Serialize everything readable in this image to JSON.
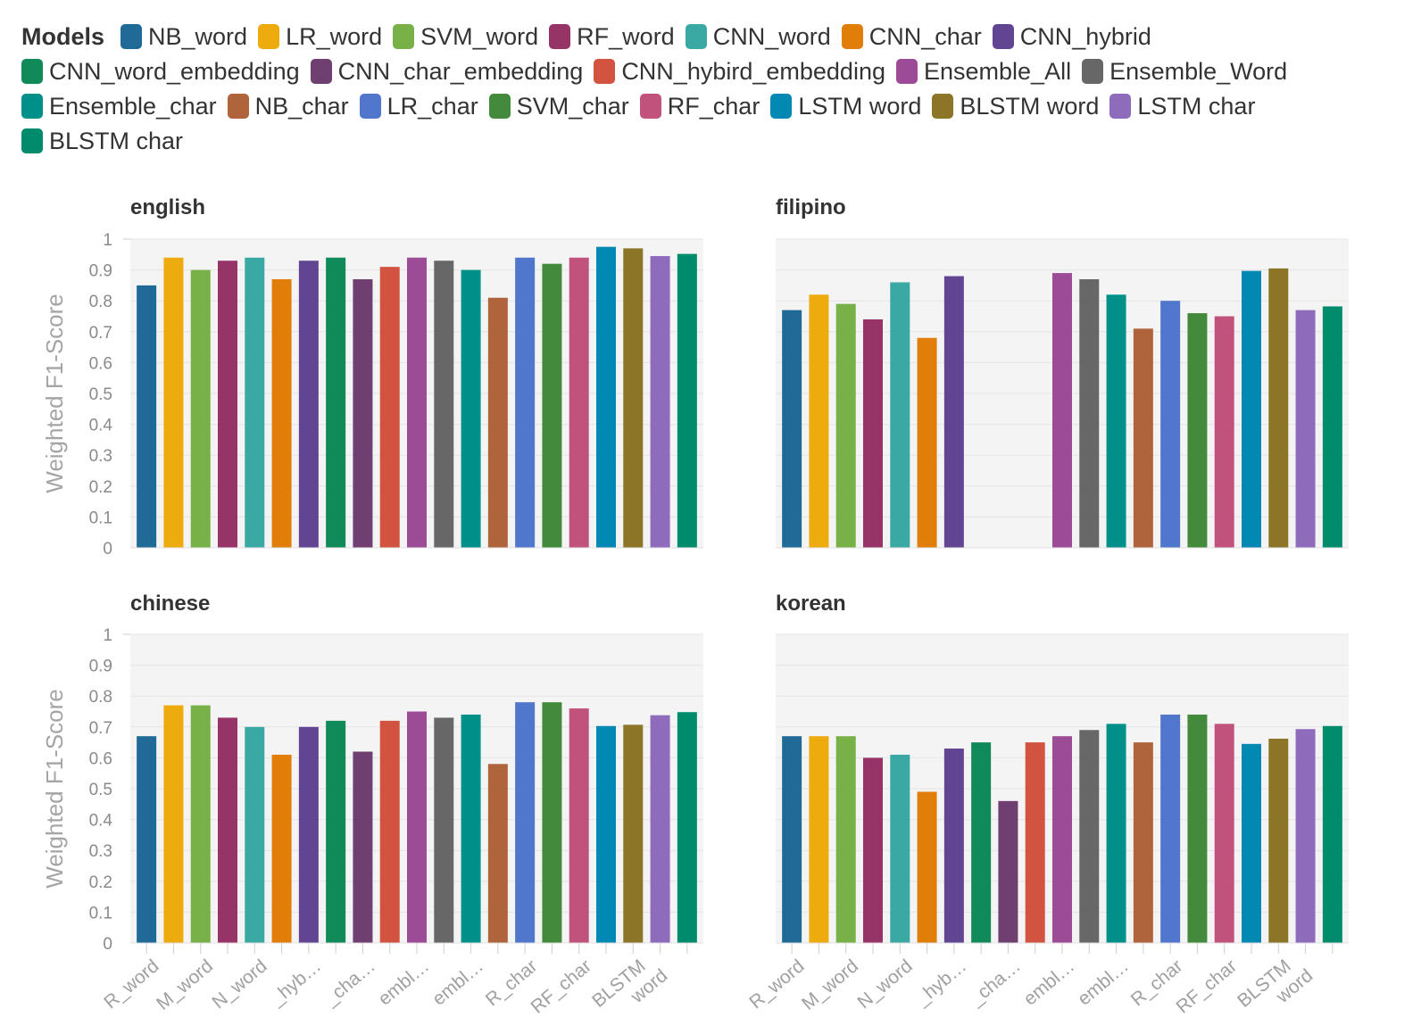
{
  "legend": {
    "title": "Models",
    "items": [
      {
        "name": "NB_word",
        "color": "#1f6a96"
      },
      {
        "name": "LR_word",
        "color": "#edab0d"
      },
      {
        "name": "SVM_word",
        "color": "#77b148"
      },
      {
        "name": "RF_word",
        "color": "#973467"
      },
      {
        "name": "CNN_word",
        "color": "#3aa9a4"
      },
      {
        "name": "CNN_char",
        "color": "#e07e09"
      },
      {
        "name": "CNN_hybrid",
        "color": "#614592"
      },
      {
        "name": "CNN_word_embedding",
        "color": "#108a58"
      },
      {
        "name": "CNN_char_embedding",
        "color": "#6e3f70"
      },
      {
        "name": "CNN_hybird_embedding",
        "color": "#d15340"
      },
      {
        "name": "Ensemble_All",
        "color": "#9c4b97"
      },
      {
        "name": "Ensemble_Word",
        "color": "#676767"
      },
      {
        "name": "Ensemble_char",
        "color": "#00908a"
      },
      {
        "name": "NB_char",
        "color": "#b0643b"
      },
      {
        "name": "LR_char",
        "color": "#5177cd"
      },
      {
        "name": "SVM_char",
        "color": "#448a3d"
      },
      {
        "name": "RF_char",
        "color": "#c0527c"
      },
      {
        "name": "LSTM word",
        "color": "#0289b3"
      },
      {
        "name": "BLSTM word",
        "color": "#8c7526"
      },
      {
        "name": "LSTM char",
        "color": "#8f6cbb"
      },
      {
        "name": "BLSTM char",
        "color": "#008c6c"
      }
    ]
  },
  "chart_data": [
    {
      "type": "bar",
      "title": "english",
      "ylabel": "Weighted F1-Score",
      "ylim": [
        0,
        1
      ],
      "yticks": [
        "0",
        "0.1",
        "0.2",
        "0.3",
        "0.4",
        "0.5",
        "0.6",
        "0.7",
        "0.8",
        "0.9",
        "1"
      ],
      "categories": [
        "NB_word",
        "LR_word",
        "SVM_word",
        "RF_word",
        "CNN_word",
        "CNN_char",
        "CNN_hybrid",
        "CNN_word_embedding",
        "CNN_char_embedding",
        "CNN_hybird_embedding",
        "Ensemble_All",
        "Ensemble_Word",
        "Ensemble_char",
        "NB_char",
        "LR_char",
        "SVM_char",
        "RF_char",
        "LSTM word",
        "BLSTM word",
        "LSTM char",
        "BLSTM char"
      ],
      "values": [
        0.85,
        0.94,
        0.9,
        0.93,
        0.94,
        0.87,
        0.93,
        0.94,
        0.87,
        0.91,
        0.94,
        0.93,
        0.9,
        0.81,
        0.94,
        0.92,
        0.94,
        0.975,
        0.97,
        0.945,
        0.952
      ]
    },
    {
      "type": "bar",
      "title": "filipino",
      "ylim": [
        0,
        1
      ],
      "categories": [
        "NB_word",
        "LR_word",
        "SVM_word",
        "RF_word",
        "CNN_word",
        "CNN_char",
        "CNN_hybrid",
        "CNN_word_embedding",
        "CNN_char_embedding",
        "CNN_hybird_embedding",
        "Ensemble_All",
        "Ensemble_Word",
        "Ensemble_char",
        "NB_char",
        "LR_char",
        "SVM_char",
        "RF_char",
        "LSTM word",
        "BLSTM word",
        "LSTM char",
        "BLSTM char"
      ],
      "values": [
        0.77,
        0.82,
        0.79,
        0.74,
        0.86,
        0.68,
        0.88,
        null,
        null,
        null,
        0.89,
        0.87,
        0.82,
        0.71,
        0.8,
        0.76,
        0.75,
        0.897,
        0.905,
        0.77,
        0.782
      ]
    },
    {
      "type": "bar",
      "title": "chinese",
      "ylabel": "Weighted F1-Score",
      "ylim": [
        0,
        1
      ],
      "yticks": [
        "0",
        "0.1",
        "0.2",
        "0.3",
        "0.4",
        "0.5",
        "0.6",
        "0.7",
        "0.8",
        "0.9",
        "1"
      ],
      "x_tick_labels": [
        "R_word",
        "M_word",
        "N_word",
        "_hyb…",
        "_cha…",
        "embl…",
        "embl…",
        "R_char",
        "RF_char",
        "BLSTM word"
      ],
      "categories": [
        "NB_word",
        "LR_word",
        "SVM_word",
        "RF_word",
        "CNN_word",
        "CNN_char",
        "CNN_hybrid",
        "CNN_word_embedding",
        "CNN_char_embedding",
        "CNN_hybird_embedding",
        "Ensemble_All",
        "Ensemble_Word",
        "Ensemble_char",
        "NB_char",
        "LR_char",
        "SVM_char",
        "RF_char",
        "LSTM word",
        "BLSTM word",
        "LSTM char",
        "BLSTM char"
      ],
      "values": [
        0.67,
        0.77,
        0.77,
        0.73,
        0.7,
        0.61,
        0.7,
        0.72,
        0.62,
        0.72,
        0.75,
        0.73,
        0.74,
        0.58,
        0.78,
        0.78,
        0.76,
        0.703,
        0.707,
        0.738,
        0.748
      ]
    },
    {
      "type": "bar",
      "title": "korean",
      "ylim": [
        0,
        1
      ],
      "x_tick_labels": [
        "R_word",
        "M_word",
        "N_word",
        "_hyb…",
        "_cha…",
        "embl…",
        "embl…",
        "R_char",
        "RF_char",
        "BLSTM word"
      ],
      "categories": [
        "NB_word",
        "LR_word",
        "SVM_word",
        "RF_word",
        "CNN_word",
        "CNN_char",
        "CNN_hybrid",
        "CNN_word_embedding",
        "CNN_char_embedding",
        "CNN_hybird_embedding",
        "Ensemble_All",
        "Ensemble_Word",
        "Ensemble_char",
        "NB_char",
        "LR_char",
        "SVM_char",
        "RF_char",
        "LSTM word",
        "BLSTM word",
        "LSTM char",
        "BLSTM char"
      ],
      "values": [
        0.67,
        0.67,
        0.67,
        0.6,
        0.61,
        0.49,
        0.63,
        0.65,
        0.46,
        0.65,
        0.67,
        0.69,
        0.71,
        0.65,
        0.74,
        0.74,
        0.71,
        0.645,
        0.662,
        0.693,
        0.703
      ]
    }
  ]
}
